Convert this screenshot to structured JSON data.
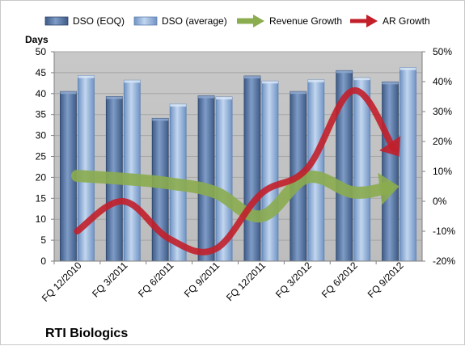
{
  "chart_data": {
    "type": "bar",
    "title": "RTI Biologics",
    "ylabel": "Days",
    "ylim": [
      0,
      50
    ],
    "y2lim": [
      -20,
      50
    ],
    "yticks": [
      "0",
      "5",
      "10",
      "15",
      "20",
      "25",
      "30",
      "35",
      "40",
      "45",
      "50"
    ],
    "y2ticks": [
      "-20%",
      "-10%",
      "0%",
      "10%",
      "20%",
      "30%",
      "40%",
      "50%"
    ],
    "grid": true,
    "legend_position": "top",
    "categories": [
      "FQ 12/2010",
      "FQ 3/2011",
      "FQ 6/2011",
      "FQ 9/2011",
      "FQ 12/2011",
      "FQ 3/2012",
      "FQ 6/2012",
      "FQ 9/2012"
    ],
    "series": [
      {
        "name": "DSO (EOQ)",
        "kind": "bar",
        "axis": "left",
        "color": "#4f6d9c",
        "values": [
          40.5,
          39.3,
          34.1,
          39.5,
          44.2,
          40.5,
          45.5,
          42.8
        ]
      },
      {
        "name": "DSO (average)",
        "kind": "bar",
        "axis": "left",
        "color": "#87a9d6",
        "values": [
          44.3,
          43.2,
          37.5,
          39.2,
          43.0,
          43.3,
          43.8,
          46.2
        ]
      },
      {
        "name": "Revenue Growth",
        "kind": "arrow-line",
        "axis": "right",
        "color": "#8bac4f",
        "values": [
          8.5,
          7.5,
          6.0,
          3.0,
          -5.0,
          8.0,
          3.0,
          5.0
        ]
      },
      {
        "name": "AR Growth",
        "kind": "arrow-line",
        "axis": "right",
        "color": "#c21f2a",
        "values": [
          -10.0,
          0.0,
          -12.5,
          -16.0,
          2.5,
          11.0,
          37.0,
          15.0
        ]
      }
    ]
  }
}
